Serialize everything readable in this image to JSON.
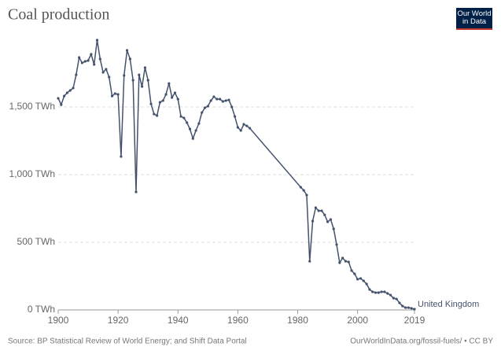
{
  "chart_data": {
    "type": "line",
    "title": "Coal production",
    "logo": "Our World in Data",
    "source": "Source: BP Statistical Review of World Energy; and Shift Data Portal",
    "credit": "OurWorldInData.org/fossil-fuels/ • CC BY",
    "x": [
      1900,
      1901,
      1902,
      1903,
      1904,
      1905,
      1906,
      1907,
      1908,
      1909,
      1910,
      1911,
      1912,
      1913,
      1914,
      1915,
      1916,
      1917,
      1918,
      1919,
      1920,
      1921,
      1922,
      1923,
      1924,
      1925,
      1926,
      1927,
      1928,
      1929,
      1930,
      1931,
      1932,
      1933,
      1934,
      1935,
      1936,
      1937,
      1938,
      1939,
      1940,
      1941,
      1942,
      1943,
      1944,
      1945,
      1946,
      1947,
      1948,
      1949,
      1950,
      1951,
      1952,
      1953,
      1954,
      1955,
      1956,
      1957,
      1958,
      1959,
      1960,
      1961,
      1962,
      1963,
      1964,
      1981,
      1982,
      1983,
      1984,
      1985,
      1986,
      1987,
      1988,
      1989,
      1990,
      1991,
      1992,
      1993,
      1994,
      1995,
      1996,
      1997,
      1998,
      1999,
      2000,
      2001,
      2002,
      2003,
      2004,
      2005,
      2006,
      2007,
      2008,
      2009,
      2010,
      2011,
      2012,
      2013,
      2014,
      2015,
      2016,
      2017,
      2018,
      2019
    ],
    "series": [
      {
        "name": "United Kingdom",
        "color": "#44526d",
        "values": [
          1564,
          1517,
          1581,
          1605,
          1622,
          1640,
          1738,
          1866,
          1826,
          1837,
          1843,
          1890,
          1814,
          1994,
          1855,
          1756,
          1779,
          1721,
          1581,
          1599,
          1593,
          1134,
          1733,
          1919,
          1855,
          1698,
          872,
          1738,
          1651,
          1791,
          1698,
          1523,
          1448,
          1436,
          1535,
          1547,
          1593,
          1674,
          1570,
          1605,
          1558,
          1430,
          1419,
          1384,
          1337,
          1267,
          1326,
          1378,
          1459,
          1494,
          1506,
          1547,
          1576,
          1558,
          1558,
          1541,
          1547,
          1552,
          1500,
          1430,
          1349,
          1326,
          1372,
          1360,
          1343,
          907,
          884,
          849,
          360,
          657,
          756,
          733,
          733,
          703,
          651,
          669,
          599,
          483,
          349,
          384,
          360,
          355,
          291,
          267,
          227,
          233,
          215,
          192,
          151,
          134,
          128,
          128,
          134,
          134,
          122,
          110,
          87,
          81,
          52,
          29,
          17,
          17,
          12,
          6
        ]
      }
    ],
    "xlim": [
      1900,
      2019
    ],
    "xticks": [
      1900,
      1920,
      1940,
      1960,
      1980,
      2000,
      2019
    ],
    "ylim": [
      0,
      2000
    ],
    "yticks": [
      {
        "value": 0,
        "label": "0 TWh"
      },
      {
        "value": 500,
        "label": "500 TWh"
      },
      {
        "value": 1000,
        "label": "1,000 TWh"
      },
      {
        "value": 1500,
        "label": "1,500 TWh"
      }
    ],
    "grid": true
  }
}
